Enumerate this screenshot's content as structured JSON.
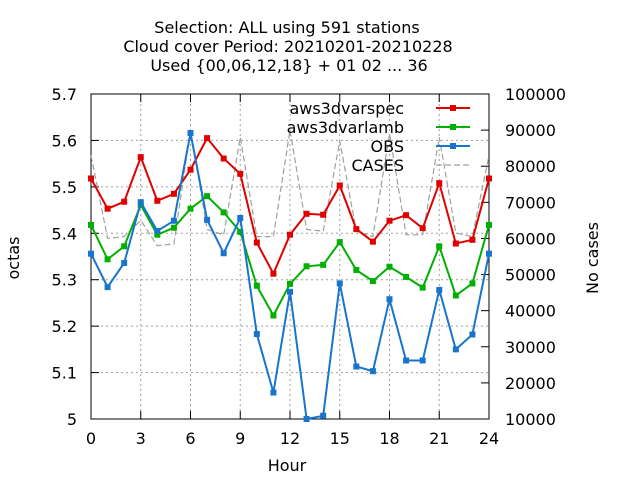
{
  "title": {
    "line1": "Selection: ALL using   591 stations",
    "line2": "Cloud cover   Period: 20210201-20210228",
    "line3": "Used {00,06,12,18} + 01 02 ... 36"
  },
  "chart_data": {
    "type": "line",
    "xlabel": "Hour",
    "ylabel": "octas",
    "y2label": "No cases",
    "xlim": [
      0,
      24
    ],
    "ylim": [
      5.0,
      5.7
    ],
    "y2lim": [
      10000,
      100000
    ],
    "xticks": [
      0,
      3,
      6,
      9,
      12,
      15,
      18,
      21,
      24
    ],
    "xtick_labels": [
      "0",
      "3",
      "6",
      "9",
      "12",
      "15",
      "18",
      "21",
      "24"
    ],
    "yticks": [
      5.0,
      5.1,
      5.2,
      5.3,
      5.4,
      5.5,
      5.6,
      5.7
    ],
    "ytick_labels": [
      "5",
      "5.1",
      "5.2",
      "5.3",
      "5.4",
      "5.5",
      "5.6",
      "5.7"
    ],
    "y2ticks": [
      10000,
      20000,
      30000,
      40000,
      50000,
      60000,
      70000,
      80000,
      90000,
      100000
    ],
    "y2tick_labels": [
      "10000",
      "20000",
      "30000",
      "40000",
      "50000",
      "60000",
      "70000",
      "80000",
      "90000",
      "100000"
    ],
    "grid": true,
    "legend_position": "top-right",
    "x": [
      0,
      1,
      2,
      3,
      4,
      5,
      6,
      7,
      8,
      9,
      10,
      11,
      12,
      13,
      14,
      15,
      16,
      17,
      18,
      19,
      20,
      21,
      22,
      23,
      24
    ],
    "series": [
      {
        "name": "aws3dvarspec",
        "color": "#e00000",
        "axis": "y1",
        "marker": "square",
        "values": [
          5.518,
          5.453,
          5.468,
          5.564,
          5.47,
          5.485,
          5.537,
          5.605,
          5.561,
          5.528,
          5.38,
          5.313,
          5.397,
          5.442,
          5.44,
          5.503,
          5.409,
          5.382,
          5.427,
          5.439,
          5.411,
          5.508,
          5.378,
          5.386,
          5.518
        ]
      },
      {
        "name": "aws3dvarlamb",
        "color": "#00b000",
        "axis": "y1",
        "marker": "square",
        "values": [
          5.418,
          5.344,
          5.372,
          5.461,
          5.397,
          5.412,
          5.453,
          5.48,
          5.445,
          5.403,
          5.287,
          5.223,
          5.291,
          5.329,
          5.332,
          5.381,
          5.321,
          5.297,
          5.328,
          5.306,
          5.283,
          5.372,
          5.266,
          5.292,
          5.418
        ]
      },
      {
        "name": "OBS",
        "color": "#1874cd",
        "axis": "y1",
        "marker": "square",
        "values": [
          5.356,
          5.284,
          5.336,
          5.467,
          5.405,
          5.427,
          5.616,
          5.429,
          5.357,
          5.433,
          5.183,
          5.057,
          5.274,
          5.0,
          5.007,
          5.292,
          5.113,
          5.103,
          5.258,
          5.126,
          5.126,
          5.278,
          5.15,
          5.182,
          5.356
        ]
      },
      {
        "name": "CASES",
        "color": "#a0a0a0",
        "axis": "y2",
        "marker": "none",
        "dashed": true,
        "values": [
          83000,
          60000,
          60500,
          65000,
          58000,
          58500,
          90000,
          62500,
          61000,
          88000,
          60500,
          60500,
          90000,
          62500,
          62000,
          87000,
          62000,
          60500,
          89000,
          61000,
          61000,
          88000,
          61500,
          60500,
          83000
        ]
      }
    ]
  }
}
